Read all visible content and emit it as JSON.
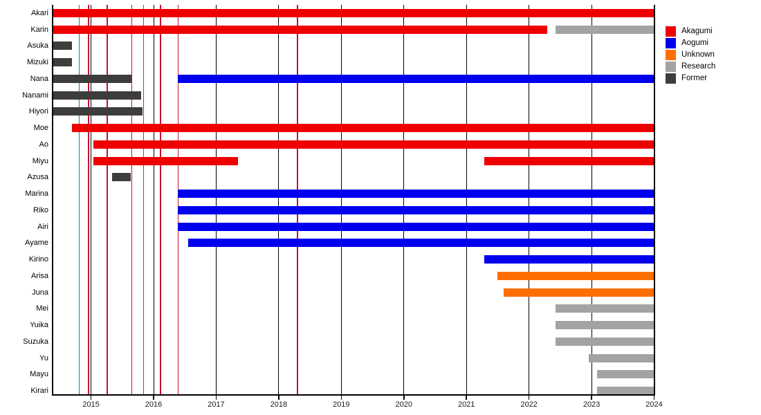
{
  "chart_data": {
    "type": "bar",
    "variant": "horizontal-gantt-timeline",
    "title": "",
    "xlabel": "",
    "ylabel": "",
    "grid": "vertical-year-lines",
    "legend_position": "top-right",
    "x_axis": {
      "range": [
        2014.38,
        2024.0
      ],
      "ticks": [
        2015,
        2016,
        2017,
        2018,
        2019,
        2020,
        2021,
        2022,
        2023,
        2024
      ],
      "tick_labels": [
        "2015",
        "2016",
        "2017",
        "2018",
        "2019",
        "2020",
        "2021",
        "2022",
        "2023",
        "2024"
      ]
    },
    "categories": [
      "Akagumi",
      "Aogumi",
      "Unknown",
      "Research",
      "Former"
    ],
    "category_colors": {
      "Akagumi": "#ee0000",
      "Aogumi": "#0000ee",
      "Unknown": "#ff6e00",
      "Research": "#a3a3a3",
      "Former": "#3d3d3d"
    },
    "rows": [
      {
        "name": "Akari",
        "segments": [
          {
            "start": 2014.38,
            "end": 2024.0,
            "category": "Akagumi"
          }
        ]
      },
      {
        "name": "Karin",
        "segments": [
          {
            "start": 2014.38,
            "end": 2022.29,
            "category": "Akagumi"
          },
          {
            "start": 2022.42,
            "end": 2024.0,
            "category": "Research"
          }
        ]
      },
      {
        "name": "Asuka",
        "segments": [
          {
            "start": 2014.38,
            "end": 2014.69,
            "category": "Former"
          }
        ]
      },
      {
        "name": "Mizuki",
        "segments": [
          {
            "start": 2014.38,
            "end": 2014.69,
            "category": "Former"
          }
        ]
      },
      {
        "name": "Nana",
        "segments": [
          {
            "start": 2014.38,
            "end": 2015.65,
            "category": "Former"
          },
          {
            "start": 2016.39,
            "end": 2024.0,
            "category": "Aogumi"
          }
        ]
      },
      {
        "name": "Nanami",
        "segments": [
          {
            "start": 2014.38,
            "end": 2015.8,
            "category": "Former"
          }
        ]
      },
      {
        "name": "Hiyori",
        "segments": [
          {
            "start": 2014.38,
            "end": 2015.82,
            "category": "Former"
          }
        ]
      },
      {
        "name": "Moe",
        "segments": [
          {
            "start": 2014.69,
            "end": 2024.0,
            "category": "Akagumi"
          }
        ]
      },
      {
        "name": "Ao",
        "segments": [
          {
            "start": 2015.04,
            "end": 2024.0,
            "category": "Akagumi"
          }
        ]
      },
      {
        "name": "Miyu",
        "segments": [
          {
            "start": 2015.04,
            "end": 2017.35,
            "category": "Akagumi"
          },
          {
            "start": 2021.29,
            "end": 2024.0,
            "category": "Akagumi"
          }
        ]
      },
      {
        "name": "Azusa",
        "segments": [
          {
            "start": 2015.34,
            "end": 2015.64,
            "category": "Former"
          }
        ]
      },
      {
        "name": "Marina",
        "segments": [
          {
            "start": 2016.39,
            "end": 2024.0,
            "category": "Aogumi"
          }
        ]
      },
      {
        "name": "Riko",
        "segments": [
          {
            "start": 2016.39,
            "end": 2024.0,
            "category": "Aogumi"
          }
        ]
      },
      {
        "name": "Airi",
        "segments": [
          {
            "start": 2016.39,
            "end": 2024.0,
            "category": "Aogumi"
          }
        ]
      },
      {
        "name": "Ayame",
        "segments": [
          {
            "start": 2016.55,
            "end": 2024.0,
            "category": "Aogumi"
          }
        ]
      },
      {
        "name": "Kirino",
        "segments": [
          {
            "start": 2021.29,
            "end": 2024.0,
            "category": "Aogumi"
          }
        ]
      },
      {
        "name": "Arisa",
        "segments": [
          {
            "start": 2021.5,
            "end": 2024.0,
            "category": "Unknown"
          }
        ]
      },
      {
        "name": "Juna",
        "segments": [
          {
            "start": 2021.59,
            "end": 2024.0,
            "category": "Unknown"
          }
        ]
      },
      {
        "name": "Mei",
        "segments": [
          {
            "start": 2022.42,
            "end": 2024.0,
            "category": "Research"
          }
        ]
      },
      {
        "name": "Yuika",
        "segments": [
          {
            "start": 2022.42,
            "end": 2024.0,
            "category": "Research"
          }
        ]
      },
      {
        "name": "Suzuka",
        "segments": [
          {
            "start": 2022.42,
            "end": 2024.0,
            "category": "Research"
          }
        ]
      },
      {
        "name": "Yu",
        "segments": [
          {
            "start": 2022.95,
            "end": 2024.0,
            "category": "Research"
          }
        ]
      },
      {
        "name": "Mayu",
        "segments": [
          {
            "start": 2023.09,
            "end": 2024.0,
            "category": "Research"
          }
        ]
      },
      {
        "name": "Kirari",
        "segments": [
          {
            "start": 2023.09,
            "end": 2024.0,
            "category": "Research"
          }
        ]
      }
    ],
    "event_lines": [
      {
        "x": 2014.81,
        "color": "#0088aa"
      },
      {
        "x": 2014.96,
        "color": "#c8102e"
      },
      {
        "x": 2015.26,
        "color": "#c8102e"
      },
      {
        "x": 2015.65,
        "color": "#c8102e"
      },
      {
        "x": 2015.84,
        "color": "#00a000"
      },
      {
        "x": 2016.11,
        "color": "#c8102e"
      },
      {
        "x": 2016.39,
        "color": "#c8102e"
      },
      {
        "x": 2018.3,
        "color": "#c8102e"
      }
    ],
    "year_gridline_color": "#000000",
    "axis_color": "#000000"
  },
  "legend": {
    "items": [
      {
        "label": "Akagumi",
        "color": "#ee0000"
      },
      {
        "label": "Aogumi",
        "color": "#0000ee"
      },
      {
        "label": "Unknown",
        "color": "#ff6e00"
      },
      {
        "label": "Research",
        "color": "#a3a3a3"
      },
      {
        "label": "Former",
        "color": "#3d3d3d"
      }
    ]
  }
}
